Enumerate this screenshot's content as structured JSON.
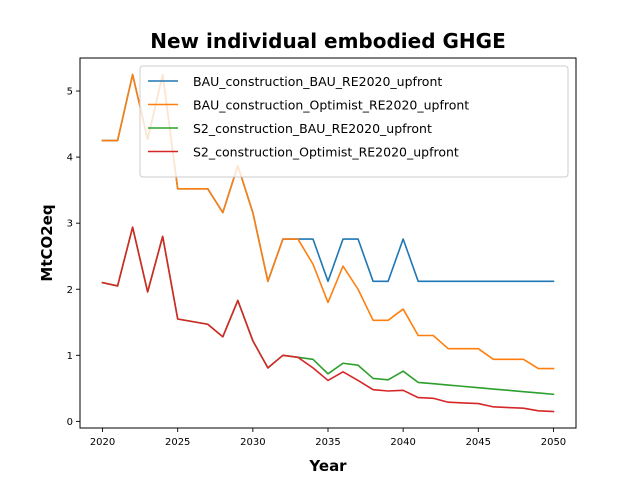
{
  "chart_data": {
    "type": "line",
    "title": "New individual embodied GHGE",
    "xlabel": "Year",
    "ylabel": "MtCO2eq",
    "xlim": [
      2018.5,
      2051.5
    ],
    "ylim": [
      -0.1,
      5.5
    ],
    "x_ticks": [
      2020,
      2025,
      2030,
      2035,
      2040,
      2045,
      2050
    ],
    "y_ticks": [
      0,
      1,
      2,
      3,
      4,
      5
    ],
    "grid": false,
    "legend_position": "top-right",
    "x": [
      2020,
      2021,
      2022,
      2023,
      2024,
      2025,
      2026,
      2027,
      2028,
      2029,
      2030,
      2031,
      2032,
      2033,
      2034,
      2035,
      2036,
      2037,
      2038,
      2039,
      2040,
      2041,
      2042,
      2043,
      2044,
      2045,
      2046,
      2047,
      2048,
      2049,
      2050
    ],
    "series": [
      {
        "name": "BAU_construction_BAU_RE2020_upfront",
        "color": "#1f77b4",
        "values": [
          4.25,
          4.25,
          5.25,
          4.27,
          5.25,
          3.52,
          3.52,
          3.52,
          3.16,
          3.87,
          3.16,
          2.12,
          2.76,
          2.76,
          2.76,
          2.12,
          2.76,
          2.76,
          2.12,
          2.12,
          2.76,
          2.12,
          2.12,
          2.12,
          2.12,
          2.12,
          2.12,
          2.12,
          2.12,
          2.12,
          2.12
        ]
      },
      {
        "name": "BAU_construction_Optimist_RE2020_upfront",
        "color": "#ff7f0e",
        "values": [
          4.25,
          4.25,
          5.25,
          4.27,
          5.25,
          3.52,
          3.52,
          3.52,
          3.16,
          3.87,
          3.16,
          2.12,
          2.76,
          2.76,
          2.38,
          1.8,
          2.35,
          2.0,
          1.53,
          1.53,
          1.7,
          1.3,
          1.3,
          1.1,
          1.1,
          1.1,
          0.94,
          0.94,
          0.94,
          0.8,
          0.8
        ]
      },
      {
        "name": "S2_construction_BAU_RE2020_upfront",
        "color": "#2ca02c",
        "values": [
          2.1,
          2.05,
          2.94,
          1.96,
          2.8,
          1.55,
          1.51,
          1.47,
          1.28,
          1.83,
          1.22,
          0.81,
          1.0,
          0.97,
          0.94,
          0.72,
          0.88,
          0.85,
          0.65,
          0.63,
          0.76,
          0.59,
          0.57,
          0.55,
          0.53,
          0.51,
          0.49,
          0.47,
          0.45,
          0.43,
          0.41
        ]
      },
      {
        "name": "S2_construction_Optimist_RE2020_upfront",
        "color": "#d62728",
        "values": [
          2.1,
          2.05,
          2.94,
          1.96,
          2.8,
          1.55,
          1.51,
          1.47,
          1.28,
          1.83,
          1.22,
          0.81,
          1.0,
          0.97,
          0.81,
          0.62,
          0.75,
          0.62,
          0.48,
          0.46,
          0.47,
          0.36,
          0.35,
          0.29,
          0.28,
          0.27,
          0.22,
          0.21,
          0.2,
          0.16,
          0.15
        ]
      }
    ]
  }
}
